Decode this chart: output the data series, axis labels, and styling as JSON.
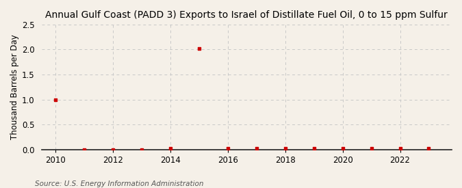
{
  "title": "Annual Gulf Coast (PADD 3) Exports to Israel of Distillate Fuel Oil, 0 to 15 ppm Sulfur",
  "ylabel": "Thousand Barrels per Day",
  "source": "Source: U.S. Energy Information Administration",
  "background_color": "#f5f0e8",
  "plot_bg_color": "#f5f0e8",
  "years": [
    2010,
    2011,
    2012,
    2013,
    2014,
    2015,
    2016,
    2017,
    2018,
    2019,
    2020,
    2021,
    2022,
    2023
  ],
  "values": [
    1.0,
    0.0,
    0.0,
    0.0,
    0.02,
    2.02,
    0.02,
    0.02,
    0.02,
    0.02,
    0.02,
    0.02,
    0.02,
    0.02
  ],
  "marker_color": "#cc0000",
  "yticks": [
    0.0,
    0.5,
    1.0,
    1.5,
    2.0,
    2.5
  ],
  "ylim": [
    0.0,
    2.5
  ],
  "xlim": [
    2009.5,
    2023.8
  ],
  "xticks": [
    2010,
    2012,
    2014,
    2016,
    2018,
    2020,
    2022
  ],
  "grid_h_color": "#c8c8c8",
  "grid_v_color": "#c8c8c8",
  "title_fontsize": 10,
  "label_fontsize": 8.5,
  "tick_fontsize": 8.5,
  "source_fontsize": 7.5
}
